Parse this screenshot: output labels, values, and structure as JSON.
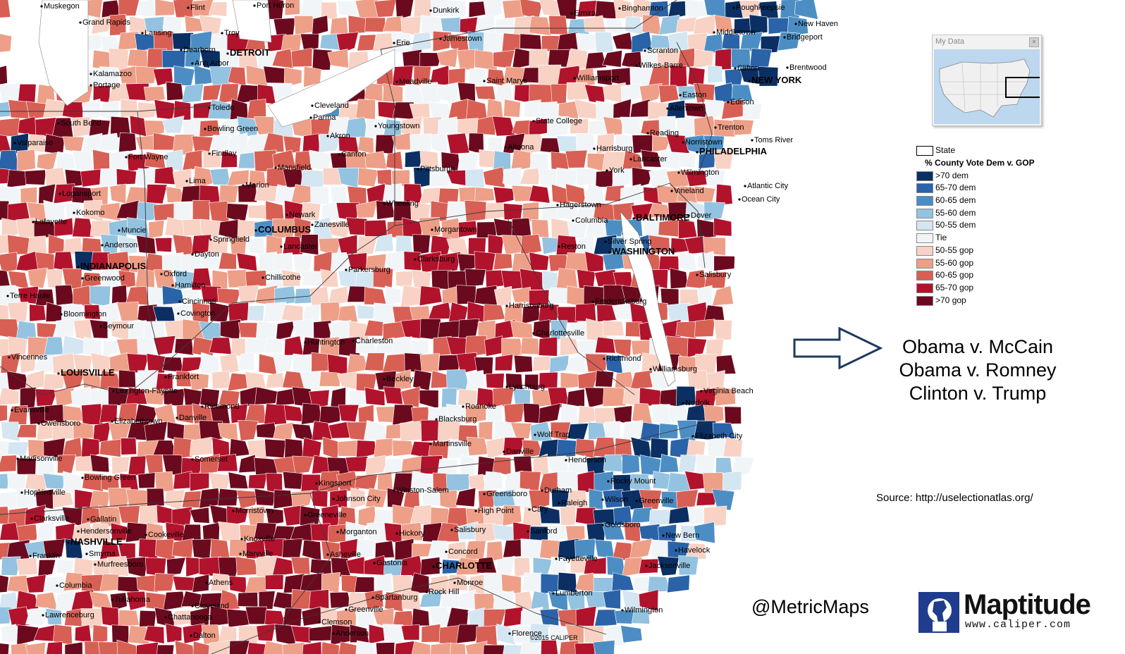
{
  "map": {
    "cities_small": [
      [
        "Muskegon",
        62,
        12
      ],
      [
        "Flint",
        270,
        14
      ],
      [
        "Port Huron",
        364,
        11
      ],
      [
        "Grand Rapids",
        117,
        35
      ],
      [
        "Lansing",
        205,
        50
      ],
      [
        "Troy",
        318,
        50
      ],
      [
        "Dearborn",
        260,
        74
      ],
      [
        "Ann Arbor",
        276,
        93
      ],
      [
        "Kalamazoo",
        132,
        108
      ],
      [
        "Portage",
        132,
        124
      ],
      [
        "Toledo",
        300,
        156
      ],
      [
        "South Bend",
        86,
        178
      ],
      [
        "Bowling Green",
        294,
        186
      ],
      [
        "Valparaiso",
        24,
        206
      ],
      [
        "Fort Wayne",
        182,
        226
      ],
      [
        "Findlay",
        300,
        221
      ],
      [
        "Mansfield",
        394,
        241
      ],
      [
        "Lima",
        268,
        260
      ],
      [
        "Marion",
        348,
        266
      ],
      [
        "Logansport",
        88,
        278
      ],
      [
        "Kokomo",
        108,
        305
      ],
      [
        "Newark",
        410,
        308
      ],
      [
        "Zanesville",
        446,
        322
      ],
      [
        "Lafayette",
        50,
        318
      ],
      [
        "Muncie",
        172,
        330
      ],
      [
        "Springfield",
        302,
        343
      ],
      [
        "Anderson",
        148,
        351
      ],
      [
        "Lancaster",
        402,
        353
      ],
      [
        "Dayton",
        276,
        364
      ],
      [
        "Oxford",
        232,
        392
      ],
      [
        "Greenwood",
        120,
        398
      ],
      [
        "Chillicothe",
        376,
        397
      ],
      [
        "Hamilton",
        248,
        408
      ],
      [
        "Terre Haute",
        14,
        423
      ],
      [
        "Cincinnati",
        258,
        431
      ],
      [
        "Covington",
        256,
        448
      ],
      [
        "Bloomington",
        90,
        449
      ],
      [
        "Seymour",
        146,
        466
      ],
      [
        "Vincennes",
        16,
        510
      ],
      [
        "Frankfort",
        238,
        538
      ],
      [
        "Lexington-Fayette",
        164,
        558
      ],
      [
        "Evansville",
        20,
        585
      ],
      [
        "Owensboro",
        58,
        604
      ],
      [
        "Richmond",
        290,
        580
      ],
      [
        "Elizabethtown",
        162,
        601
      ],
      [
        "Danville",
        254,
        596
      ],
      [
        "Madisonville",
        28,
        654
      ],
      [
        "Somerset",
        276,
        655
      ],
      [
        "Bowling Green",
        120,
        681
      ],
      [
        "Hopkinsville",
        34,
        702
      ],
      [
        "Clarksville",
        48,
        739
      ],
      [
        "Gallatin",
        128,
        740
      ],
      [
        "Hendersonville",
        114,
        757
      ],
      [
        "Cookeville",
        210,
        762
      ],
      [
        "Smyrna",
        126,
        789
      ],
      [
        "Franklin",
        46,
        792
      ],
      [
        "Murfreesboro",
        138,
        804
      ],
      [
        "Columbia",
        84,
        834
      ],
      [
        "Tullahoma",
        162,
        854
      ],
      [
        "Lawrenceburg",
        64,
        876
      ],
      [
        "Cleveland",
        276,
        863
      ],
      [
        "Chattanooga",
        238,
        879
      ],
      [
        "Dalton",
        274,
        905
      ],
      [
        "Athens",
        296,
        830
      ],
      [
        "Knoxville",
        346,
        768
      ],
      [
        "Maryville",
        344,
        789
      ],
      [
        "Morristown",
        334,
        728
      ],
      [
        "Kingsport",
        452,
        689
      ],
      [
        "Johnson City",
        476,
        711
      ],
      [
        "Greeneville",
        436,
        734
      ],
      [
        "Morganton",
        482,
        758
      ],
      [
        "Asheville",
        468,
        790
      ],
      [
        "Gastonia",
        534,
        802
      ],
      [
        "Hickory",
        566,
        760
      ],
      [
        "Salisbury",
        644,
        755
      ],
      [
        "Concord",
        636,
        786
      ],
      [
        "Monroe",
        648,
        830
      ],
      [
        "Rock Hill",
        608,
        843
      ],
      [
        "Spartanburg",
        532,
        851
      ],
      [
        "Greenville",
        494,
        868
      ],
      [
        "Clemson",
        456,
        886
      ],
      [
        "Anderson",
        476,
        902
      ],
      [
        "Florence",
        726,
        902
      ],
      [
        "Winston-Salem",
        562,
        699
      ],
      [
        "Greensboro",
        690,
        704
      ],
      [
        "High Point",
        678,
        728
      ],
      [
        "Durham",
        772,
        699
      ],
      [
        "Cary",
        754,
        726
      ],
      [
        "Raleigh",
        796,
        717
      ],
      [
        "Rocky Mount",
        866,
        686
      ],
      [
        "Wilson",
        858,
        712
      ],
      [
        "Greenville",
        906,
        714
      ],
      [
        "Sanford",
        752,
        757
      ],
      [
        "Goldsboro",
        858,
        748
      ],
      [
        "Fayetteville",
        792,
        796
      ],
      [
        "New Bern",
        944,
        763
      ],
      [
        "Havelock",
        962,
        784
      ],
      [
        "Jacksonville",
        920,
        806
      ],
      [
        "Lumberton",
        788,
        845
      ],
      [
        "Wilmington",
        886,
        869
      ],
      [
        "Henderson",
        806,
        656
      ],
      [
        "Danville",
        718,
        644
      ],
      [
        "Martinsville",
        614,
        633
      ],
      [
        "Roanoke",
        660,
        580
      ],
      [
        "Blacksburg",
        622,
        598
      ],
      [
        "Lynchburg",
        722,
        552
      ],
      [
        "Wolf Trap",
        762,
        620
      ],
      [
        "Beckley",
        548,
        541
      ],
      [
        "Charleston",
        504,
        487
      ],
      [
        "Huntington",
        436,
        489
      ],
      [
        "Parkersburg",
        494,
        386
      ],
      [
        "Clarksburg",
        592,
        371
      ],
      [
        "Morgantown",
        616,
        329
      ],
      [
        "Wheeling",
        548,
        292
      ],
      [
        "Pittsburgh",
        596,
        243
      ],
      [
        "Youngstown",
        536,
        182
      ],
      [
        "Canton",
        484,
        222
      ],
      [
        "Akron",
        468,
        196
      ],
      [
        "Parma",
        444,
        170
      ],
      [
        "Cleveland",
        446,
        153
      ],
      [
        "Erie",
        562,
        64
      ],
      [
        "Meadville",
        566,
        119
      ],
      [
        "Jamestown",
        628,
        58
      ],
      [
        "Dunkirk",
        614,
        18
      ],
      [
        "Saint Marys",
        690,
        118
      ],
      [
        "Altoona",
        720,
        212
      ],
      [
        "State College",
        760,
        175
      ],
      [
        "Williamsport",
        818,
        114
      ],
      [
        "Harrisburg",
        846,
        214
      ],
      [
        "York",
        864,
        245
      ],
      [
        "Lancaster",
        898,
        229
      ],
      [
        "Reading",
        922,
        192
      ],
      [
        "Allentown",
        950,
        157
      ],
      [
        "Easton",
        968,
        138
      ],
      [
        "Wilkes-Barre",
        906,
        96
      ],
      [
        "Scranton",
        918,
        75
      ],
      [
        "Elmira",
        814,
        22
      ],
      [
        "Binghamton",
        882,
        15
      ],
      [
        "Middletown",
        1016,
        49
      ],
      [
        "Poughkeepsie",
        1044,
        14
      ],
      [
        "New Haven",
        1132,
        37
      ],
      [
        "Bridgeport",
        1116,
        56
      ],
      [
        "Clifton",
        1046,
        100
      ],
      [
        "Brentwood",
        1120,
        99
      ],
      [
        "Edison",
        1036,
        148
      ],
      [
        "Trenton",
        1018,
        184
      ],
      [
        "Norristown",
        972,
        205
      ],
      [
        "Toms River",
        1070,
        202
      ],
      [
        "Wilmington",
        966,
        248
      ],
      [
        "Atlantic City",
        1060,
        267
      ],
      [
        "Vineland",
        956,
        274
      ],
      [
        "Ocean City",
        1052,
        286
      ],
      [
        "Dover",
        980,
        309
      ],
      [
        "Hagerstown",
        794,
        294
      ],
      [
        "Columbia",
        816,
        316
      ],
      [
        "Reston",
        796,
        353
      ],
      [
        "Silver Spring",
        862,
        346
      ],
      [
        "Salisbury",
        992,
        393
      ],
      [
        "Fredericksburg",
        844,
        431
      ],
      [
        "Harrisonburg",
        722,
        437
      ],
      [
        "Charlottesville",
        760,
        476
      ],
      [
        "Richmond",
        860,
        512
      ],
      [
        "Williamsburg",
        926,
        527
      ],
      [
        "Virginia Beach",
        998,
        558
      ],
      [
        "Norfolk",
        972,
        575
      ],
      [
        "Elizabeth City",
        986,
        622
      ]
    ],
    "cities_big": [
      [
        "DETROIT",
        326,
        79
      ],
      [
        "NEW YORK",
        1066,
        118
      ],
      [
        "PHILADELPHIA",
        992,
        219
      ],
      [
        "COLUMBUS",
        366,
        330
      ],
      [
        "INDIANAPOLIS",
        114,
        382
      ],
      [
        "BALTIMORE",
        902,
        313
      ],
      [
        "WASHINGTON",
        868,
        361
      ],
      [
        "LOUISVILLE",
        86,
        533
      ],
      [
        "NASHVILLE",
        100,
        773
      ],
      [
        "CHARLOTTE",
        618,
        807
      ]
    ],
    "copyright": "©2015 CALIPER"
  },
  "inset": {
    "title": "My Data"
  },
  "legend": {
    "state_label": "State",
    "title": "% County Vote Dem v. GOP",
    "items": [
      {
        "label": ">70 dem",
        "color": "#0b2f63"
      },
      {
        "label": "65-70 dem",
        "color": "#2a63a8"
      },
      {
        "label": "60-65 dem",
        "color": "#4c8ec4"
      },
      {
        "label": "55-60 dem",
        "color": "#93c3e0"
      },
      {
        "label": "50-55 dem",
        "color": "#d4e6f2"
      },
      {
        "label": "Tie",
        "color": "#f1f5f8"
      },
      {
        "label": "50-55 gop",
        "color": "#f8d2c4"
      },
      {
        "label": "55-60 gop",
        "color": "#ee9f88"
      },
      {
        "label": "60-65 gop",
        "color": "#d85f54"
      },
      {
        "label": "65-70 gop",
        "color": "#b1132c"
      },
      {
        "label": ">70 gop",
        "color": "#6b0a1e"
      }
    ]
  },
  "matchups": [
    "Obama v. McCain",
    "Obama v. Romney",
    "Clinton v. Trump"
  ],
  "source": "Source: http://uselectionatlas.org/",
  "handle": "@MetricMaps",
  "logo": {
    "word": "Maptitude",
    "url": "www.caliper.com"
  }
}
